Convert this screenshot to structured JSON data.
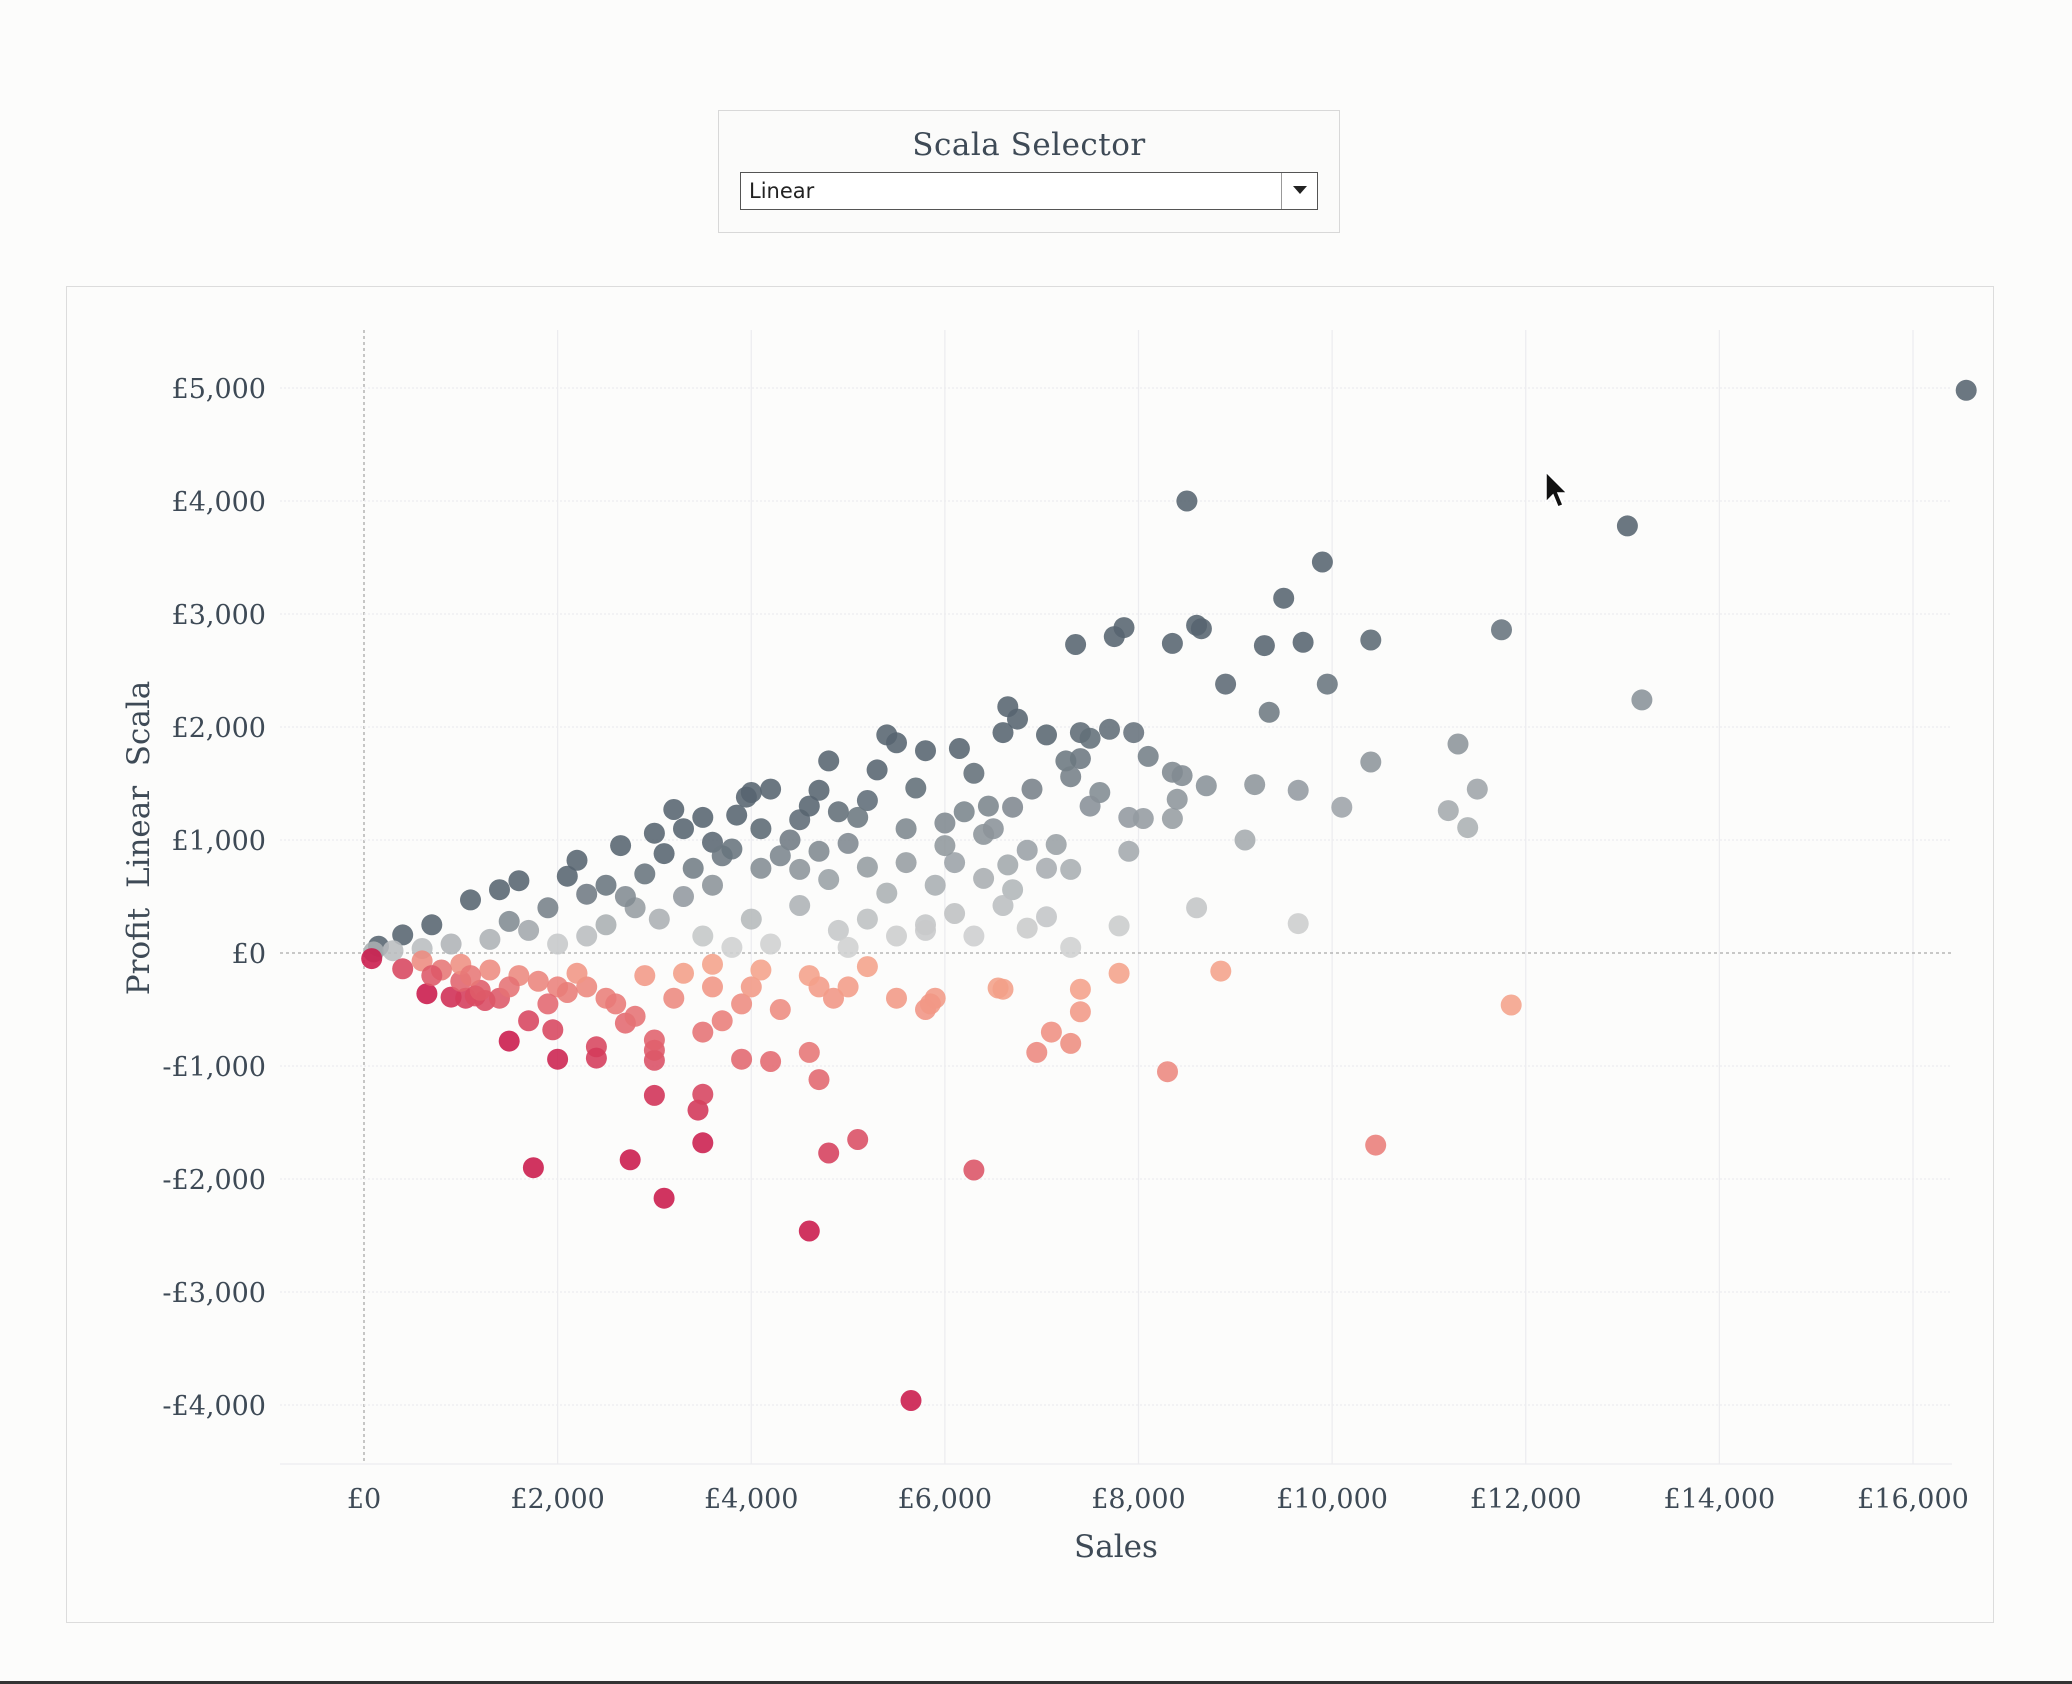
{
  "selector": {
    "title": "Scala Selector",
    "selected": "Linear"
  },
  "chart_data": {
    "type": "scatter",
    "title": "",
    "xlabel": "Sales",
    "ylabel": "Profit  Linear  Scala",
    "xlim": [
      -900,
      17500
    ],
    "ylim": [
      -4500,
      5500
    ],
    "x_ticks": [
      0,
      2000,
      4000,
      6000,
      8000,
      10000,
      12000,
      14000,
      16000
    ],
    "x_tick_labels": [
      "£0",
      "£2,000",
      "£4,000",
      "£6,000",
      "£8,000",
      "£10,000",
      "£12,000",
      "£14,000",
      "£16,000"
    ],
    "y_ticks": [
      5000,
      4000,
      3000,
      2000,
      1000,
      0,
      -1000,
      -2000,
      -3000,
      -4000
    ],
    "y_tick_labels": [
      "£5,000",
      "£4,000",
      "£3,000",
      "£2,000",
      "£1,000",
      "£0",
      "-£1,000",
      "-£2,000",
      "-£3,000",
      "-£4,000"
    ],
    "grid": true,
    "legend": "none",
    "colors": {
      "positive_dark": "#56646f",
      "positive_light": "#cfd0d0",
      "negative_dark": "#c9184a",
      "negative_light": "#f4a28a",
      "zero_line": "#a8a8a8",
      "grid": "#ececef"
    },
    "points": [
      [
        16550,
        4980
      ],
      [
        8500,
        4000
      ],
      [
        13050,
        3780
      ],
      [
        9900,
        3460
      ],
      [
        9500,
        3140
      ],
      [
        11750,
        2860
      ],
      [
        8600,
        2900
      ],
      [
        8650,
        2870
      ],
      [
        7850,
        2880
      ],
      [
        7750,
        2800
      ],
      [
        8350,
        2740
      ],
      [
        9700,
        2750
      ],
      [
        9300,
        2720
      ],
      [
        7350,
        2730
      ],
      [
        10400,
        2770
      ],
      [
        13200,
        2240
      ],
      [
        8900,
        2380
      ],
      [
        9950,
        2380
      ],
      [
        9350,
        2130
      ],
      [
        11300,
        1850
      ],
      [
        10400,
        1690
      ],
      [
        9650,
        1440
      ],
      [
        9200,
        1490
      ],
      [
        11500,
        1450
      ],
      [
        10100,
        1290
      ],
      [
        11200,
        1260
      ],
      [
        11400,
        1110
      ],
      [
        9100,
        1000
      ],
      [
        9650,
        260
      ],
      [
        8600,
        400
      ],
      [
        7800,
        240
      ],
      [
        7300,
        50
      ],
      [
        6850,
        220
      ],
      [
        7050,
        320
      ],
      [
        6650,
        2180
      ],
      [
        6750,
        2070
      ],
      [
        6600,
        1950
      ],
      [
        5400,
        1930
      ],
      [
        5800,
        1790
      ],
      [
        6150,
        1810
      ],
      [
        5500,
        1860
      ],
      [
        4800,
        1700
      ],
      [
        5300,
        1620
      ],
      [
        4700,
        1440
      ],
      [
        4200,
        1450
      ],
      [
        4000,
        1420
      ],
      [
        3950,
        1380
      ],
      [
        3200,
        1270
      ],
      [
        3850,
        1220
      ],
      [
        3000,
        1060
      ],
      [
        2650,
        950
      ],
      [
        2200,
        820
      ],
      [
        2100,
        680
      ],
      [
        1600,
        640
      ],
      [
        1400,
        560
      ],
      [
        1100,
        470
      ],
      [
        700,
        250
      ],
      [
        400,
        160
      ],
      [
        150,
        60
      ],
      [
        7400,
        1950
      ],
      [
        7500,
        1900
      ],
      [
        7700,
        1980
      ],
      [
        7950,
        1950
      ],
      [
        7250,
        1700
      ],
      [
        7050,
        1930
      ],
      [
        8100,
        1740
      ],
      [
        8350,
        1600
      ],
      [
        8450,
        1570
      ],
      [
        8700,
        1480
      ],
      [
        7300,
        1560
      ],
      [
        7600,
        1420
      ],
      [
        7900,
        1200
      ],
      [
        8050,
        1190
      ],
      [
        8350,
        1190
      ],
      [
        8400,
        1360
      ],
      [
        7500,
        1300
      ],
      [
        7150,
        960
      ],
      [
        7300,
        740
      ],
      [
        7900,
        900
      ],
      [
        6300,
        1590
      ],
      [
        6200,
        1250
      ],
      [
        6900,
        1450
      ],
      [
        6450,
        1300
      ],
      [
        6000,
        1150
      ],
      [
        5700,
        1460
      ],
      [
        5200,
        1350
      ],
      [
        4900,
        1250
      ],
      [
        4500,
        1180
      ],
      [
        4400,
        1000
      ],
      [
        5000,
        970
      ],
      [
        6100,
        800
      ],
      [
        6650,
        780
      ],
      [
        7400,
        1720
      ],
      [
        6500,
        1100
      ],
      [
        6700,
        1290
      ],
      [
        6850,
        910
      ],
      [
        7050,
        750
      ],
      [
        5600,
        800
      ],
      [
        5900,
        600
      ],
      [
        6400,
        660
      ],
      [
        6700,
        560
      ],
      [
        5400,
        530
      ],
      [
        6100,
        350
      ],
      [
        6600,
        420
      ],
      [
        5800,
        250
      ],
      [
        5200,
        300
      ],
      [
        4900,
        200
      ],
      [
        5500,
        150
      ],
      [
        6300,
        150
      ],
      [
        4500,
        420
      ],
      [
        4000,
        300
      ],
      [
        3500,
        150
      ],
      [
        4200,
        80
      ],
      [
        3800,
        50
      ],
      [
        5000,
        50
      ],
      [
        5800,
        200
      ],
      [
        3600,
        600
      ],
      [
        3300,
        500
      ],
      [
        3050,
        300
      ],
      [
        2800,
        400
      ],
      [
        2500,
        250
      ],
      [
        2300,
        150
      ],
      [
        2000,
        80
      ],
      [
        1700,
        200
      ],
      [
        1300,
        120
      ],
      [
        900,
        80
      ],
      [
        600,
        40
      ],
      [
        300,
        20
      ],
      [
        100,
        10
      ],
      [
        3100,
        880
      ],
      [
        3600,
        980
      ],
      [
        2900,
        700
      ],
      [
        2500,
        600
      ],
      [
        2300,
        520
      ],
      [
        1900,
        400
      ],
      [
        1500,
        280
      ],
      [
        4100,
        750
      ],
      [
        4300,
        860
      ],
      [
        4700,
        900
      ],
      [
        3400,
        750
      ],
      [
        3700,
        860
      ],
      [
        4800,
        650
      ],
      [
        5200,
        760
      ],
      [
        2700,
        500
      ],
      [
        3300,
        1100
      ],
      [
        3500,
        1200
      ],
      [
        4100,
        1100
      ],
      [
        4600,
        1300
      ],
      [
        5100,
        1200
      ],
      [
        5600,
        1100
      ],
      [
        6000,
        950
      ],
      [
        6400,
        1050
      ],
      [
        3800,
        920
      ],
      [
        4500,
        740
      ],
      [
        80,
        -50
      ],
      [
        400,
        -140
      ],
      [
        650,
        -360
      ],
      [
        900,
        -390
      ],
      [
        1050,
        -400
      ],
      [
        1150,
        -380
      ],
      [
        1250,
        -420
      ],
      [
        1400,
        -400
      ],
      [
        1200,
        -330
      ],
      [
        1000,
        -250
      ],
      [
        1500,
        -780
      ],
      [
        1700,
        -600
      ],
      [
        1950,
        -680
      ],
      [
        1750,
        -1900
      ],
      [
        2000,
        -940
      ],
      [
        2400,
        -830
      ],
      [
        2400,
        -930
      ],
      [
        2750,
        -1830
      ],
      [
        3100,
        -2170
      ],
      [
        3000,
        -1260
      ],
      [
        3450,
        -1390
      ],
      [
        3500,
        -1250
      ],
      [
        3500,
        -1680
      ],
      [
        4600,
        -2460
      ],
      [
        5650,
        -3960
      ],
      [
        4800,
        -1770
      ],
      [
        5100,
        -1650
      ],
      [
        6300,
        -1920
      ],
      [
        3000,
        -950
      ],
      [
        3000,
        -860
      ],
      [
        3000,
        -770
      ],
      [
        2700,
        -620
      ],
      [
        2800,
        -560
      ],
      [
        2500,
        -400
      ],
      [
        2300,
        -300
      ],
      [
        2000,
        -300
      ],
      [
        1800,
        -250
      ],
      [
        1600,
        -200
      ],
      [
        1300,
        -150
      ],
      [
        1000,
        -100
      ],
      [
        3500,
        -700
      ],
      [
        3700,
        -600
      ],
      [
        3900,
        -450
      ],
      [
        4000,
        -300
      ],
      [
        3600,
        -300
      ],
      [
        3300,
        -180
      ],
      [
        3900,
        -940
      ],
      [
        4200,
        -960
      ],
      [
        4600,
        -880
      ],
      [
        4700,
        -1120
      ],
      [
        4300,
        -500
      ],
      [
        4850,
        -400
      ],
      [
        5000,
        -300
      ],
      [
        4700,
        -300
      ],
      [
        5500,
        -400
      ],
      [
        5800,
        -500
      ],
      [
        5900,
        -400
      ],
      [
        5850,
        -450
      ],
      [
        6550,
        -310
      ],
      [
        6600,
        -320
      ],
      [
        7400,
        -320
      ],
      [
        7400,
        -520
      ],
      [
        7100,
        -700
      ],
      [
        6950,
        -880
      ],
      [
        7300,
        -800
      ],
      [
        7800,
        -180
      ],
      [
        8300,
        -1050
      ],
      [
        8850,
        -160
      ],
      [
        11850,
        -460
      ],
      [
        10450,
        -1700
      ],
      [
        600,
        -70
      ],
      [
        800,
        -150
      ],
      [
        1100,
        -200
      ],
      [
        2100,
        -350
      ],
      [
        2600,
        -450
      ],
      [
        3200,
        -400
      ],
      [
        1900,
        -450
      ],
      [
        2200,
        -180
      ],
      [
        2900,
        -200
      ],
      [
        4100,
        -150
      ],
      [
        3600,
        -100
      ],
      [
        4600,
        -200
      ],
      [
        5200,
        -120
      ],
      [
        700,
        -200
      ],
      [
        1500,
        -300
      ]
    ]
  }
}
